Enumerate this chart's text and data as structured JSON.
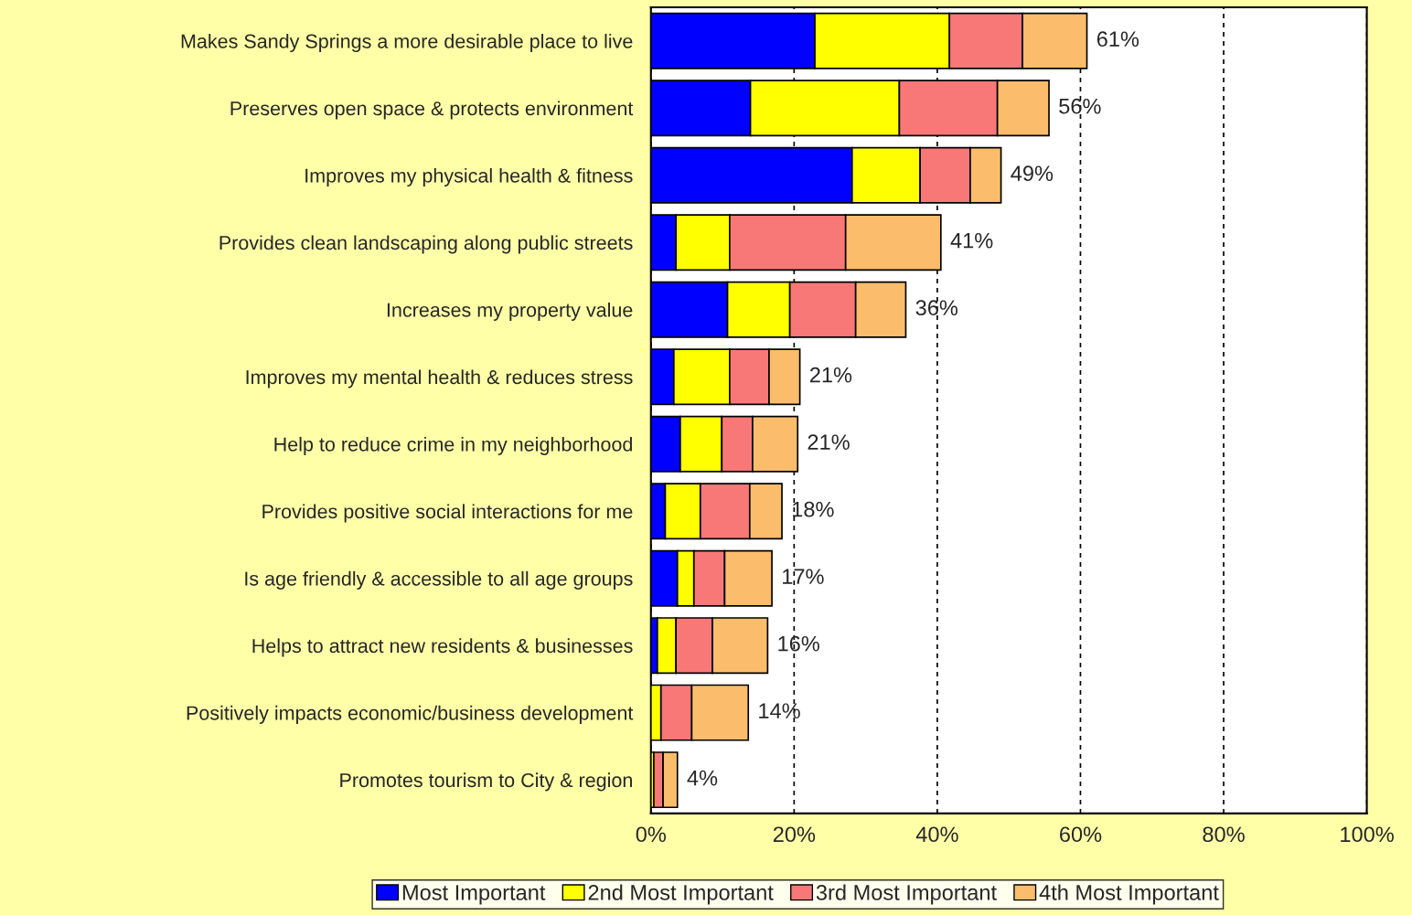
{
  "chart_data": {
    "type": "bar",
    "orientation": "horizontal",
    "stacked": true,
    "categories": [
      "Makes Sandy Springs a more desirable place to live",
      "Preserves open space & protects environment",
      "Improves my physical health & fitness",
      "Provides clean landscaping along public streets",
      "Increases my property value",
      "Improves my mental health & reduces stress",
      "Help to reduce crime in my neighborhood",
      "Provides positive social interactions for me",
      "Is age friendly & accessible to all age groups",
      "Helps to attract new residents & businesses",
      "Positively impacts economic/business development",
      "Promotes tourism to City & region"
    ],
    "series": [
      {
        "name": "Most Important",
        "color": "#0000ff",
        "values": [
          22.9,
          13.9,
          28.1,
          3.5,
          10.7,
          3.2,
          4.1,
          2.0,
          3.7,
          0.9,
          null,
          null
        ]
      },
      {
        "name": "2nd Most Important",
        "color": "#ffff00",
        "values": [
          18.8,
          20.8,
          9.5,
          7.5,
          8.7,
          7.8,
          5.8,
          4.9,
          2.3,
          2.6,
          1.4,
          0.4
        ]
      },
      {
        "name": "3rd Most Important",
        "color": "#f87878",
        "values": [
          10.2,
          13.7,
          7.0,
          16.2,
          9.2,
          5.5,
          4.3,
          6.9,
          4.3,
          5.1,
          4.3,
          1.3
        ]
      },
      {
        "name": "4th Most Important",
        "color": "#fbbd6c",
        "values": [
          9.0,
          7.2,
          4.3,
          13.3,
          7.0,
          4.3,
          6.3,
          4.5,
          6.6,
          7.7,
          7.9,
          2.0
        ]
      }
    ],
    "totals": [
      "61%",
      "56%",
      "49%",
      "41%",
      "36%",
      "21%",
      "21%",
      "18%",
      "17%",
      "16%",
      "14%",
      "4%"
    ],
    "xlim": [
      0,
      100
    ],
    "xticks": [
      {
        "value": 0,
        "label": "0%"
      },
      {
        "value": 20,
        "label": "20%"
      },
      {
        "value": 40,
        "label": "40%"
      },
      {
        "value": 60,
        "label": "60%"
      },
      {
        "value": 80,
        "label": "80%"
      },
      {
        "value": 100,
        "label": "100%"
      }
    ],
    "grid": "x",
    "legend": "bottom"
  }
}
